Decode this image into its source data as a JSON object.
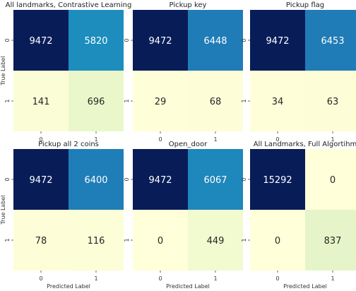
{
  "chart_data": [
    {
      "type": "heatmap",
      "title": "All landmarks, Contrastive Learning",
      "x_ticks": [
        "0",
        "1"
      ],
      "y_ticks": [
        "0",
        "1"
      ],
      "xlabel": "",
      "ylabel": "True Label",
      "matrix": [
        [
          9472,
          5820
        ],
        [
          141,
          696
        ]
      ],
      "colormap": [
        "#ffffd9",
        "#c7e9b4",
        "#41b6c4",
        "#1d91c0",
        "#225ea8",
        "#081d58"
      ],
      "vmax": 9472
    },
    {
      "type": "heatmap",
      "title": "Pickup key",
      "x_ticks": [
        "0",
        "1"
      ],
      "y_ticks": [
        "0",
        "1"
      ],
      "xlabel": "",
      "ylabel": "",
      "matrix": [
        [
          9472,
          6448
        ],
        [
          29,
          68
        ]
      ],
      "colormap": [
        "#ffffd9",
        "#c7e9b4",
        "#41b6c4",
        "#1d91c0",
        "#225ea8",
        "#081d58"
      ],
      "vmax": 9472
    },
    {
      "type": "heatmap",
      "title": "Pickup flag",
      "x_ticks": [
        "0",
        "1"
      ],
      "y_ticks": [
        "0",
        "1"
      ],
      "xlabel": "",
      "ylabel": "",
      "matrix": [
        [
          9472,
          6453
        ],
        [
          34,
          63
        ]
      ],
      "colormap": [
        "#ffffd9",
        "#c7e9b4",
        "#41b6c4",
        "#1d91c0",
        "#225ea8",
        "#081d58"
      ],
      "vmax": 9472
    },
    {
      "type": "heatmap",
      "title": "Pickup all 2 coins",
      "x_ticks": [
        "0",
        "1"
      ],
      "y_ticks": [
        "0",
        "1"
      ],
      "xlabel": "Predicted Label",
      "ylabel": "True Label",
      "matrix": [
        [
          9472,
          6400
        ],
        [
          78,
          116
        ]
      ],
      "colormap": [
        "#ffffd9",
        "#c7e9b4",
        "#41b6c4",
        "#1d91c0",
        "#225ea8",
        "#081d58"
      ],
      "vmax": 9472
    },
    {
      "type": "heatmap",
      "title": "Open_door",
      "x_ticks": [
        "0",
        "1"
      ],
      "y_ticks": [
        "0",
        "1"
      ],
      "xlabel": "Predicted Label",
      "ylabel": "",
      "matrix": [
        [
          9472,
          6067
        ],
        [
          0,
          449
        ]
      ],
      "colormap": [
        "#ffffd9",
        "#c7e9b4",
        "#41b6c4",
        "#1d91c0",
        "#225ea8",
        "#081d58"
      ],
      "vmax": 9472
    },
    {
      "type": "heatmap",
      "title": "All Landmarks, Full Algortihm",
      "x_ticks": [
        "0",
        "1"
      ],
      "y_ticks": [
        "0",
        "1"
      ],
      "xlabel": "Predicted Label",
      "ylabel": "",
      "matrix": [
        [
          15292,
          0
        ],
        [
          0,
          837
        ]
      ],
      "colormap": [
        "#ffffd9",
        "#c7e9b4",
        "#41b6c4",
        "#1d91c0",
        "#225ea8",
        "#081d58"
      ],
      "vmax": 9472
    }
  ]
}
